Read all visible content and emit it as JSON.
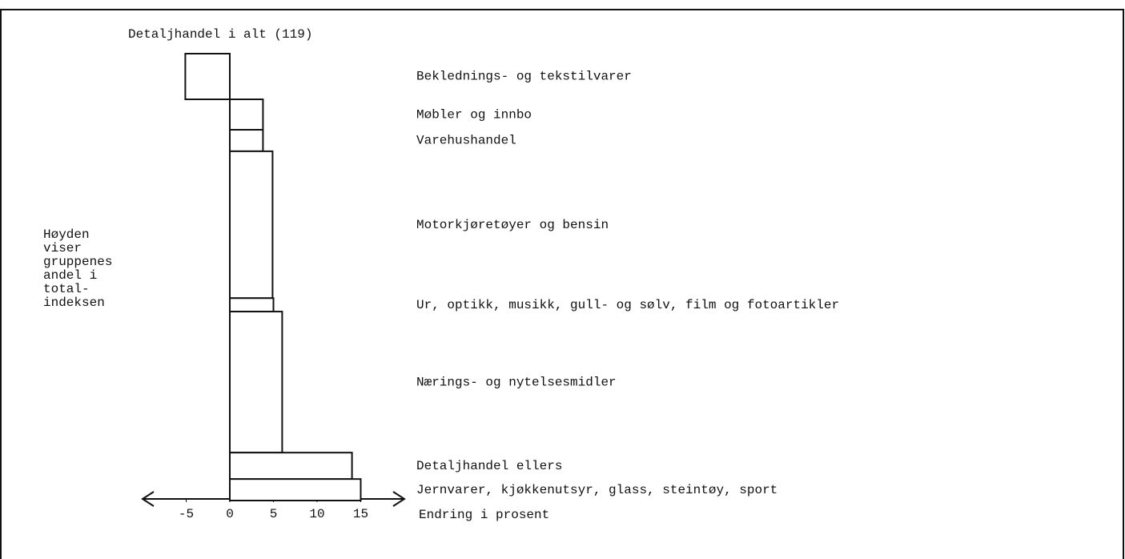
{
  "chart_data": {
    "type": "bar",
    "orientation": "horizontal",
    "title": "Detaljhandel i alt (119)",
    "note_lines": [
      "Høyden",
      "viser",
      "gruppenes",
      "andel i",
      "total-",
      "indeksen"
    ],
    "x_label": "Endring i prosent",
    "categories": [
      "Beklednings- og tekstilvarer",
      "Møbler og innbo",
      "Varehushandel",
      "Motorkjøretøyer og bensin",
      "Ur, optikk, musikk, gull- og sølv, film og fotoartikler",
      "Nærings- og nytelsesmidler",
      "Detaljhandel ellers",
      "Jernvarer, kjøkkenutsyr, glass, steintøy, sport"
    ],
    "values": [
      -5.1,
      3.8,
      3.8,
      4.9,
      5.0,
      6.0,
      14.0,
      15.0
    ],
    "weights": [
      10.2,
      6.8,
      4.8,
      32.8,
      3.0,
      31.5,
      5.9,
      4.8
    ],
    "color": "#ffffff",
    "xlim": [
      -10,
      20
    ],
    "xticks": [
      -5,
      0,
      5,
      10,
      15
    ]
  }
}
